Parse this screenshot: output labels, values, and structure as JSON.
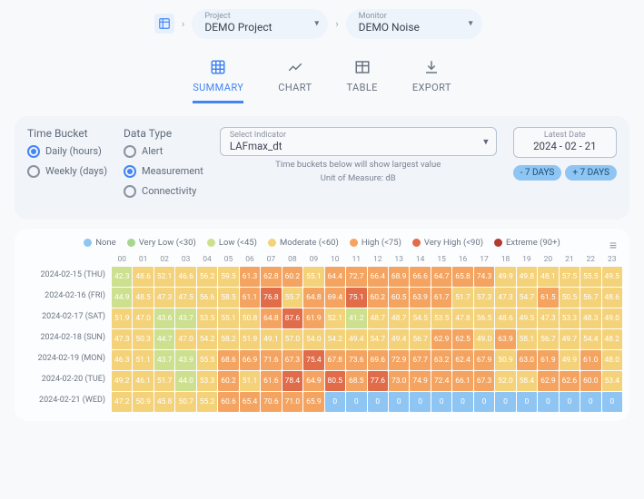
{
  "breadcrumb": {
    "project_label": "Project",
    "project_value": "DEMO Project",
    "monitor_label": "Monitor",
    "monitor_value": "DEMO Noise"
  },
  "tabs": [
    {
      "id": "summary",
      "label": "SUMMARY",
      "active": true
    },
    {
      "id": "chart",
      "label": "CHART",
      "active": false
    },
    {
      "id": "table",
      "label": "TABLE",
      "active": false
    },
    {
      "id": "export",
      "label": "EXPORT",
      "active": false
    }
  ],
  "controls": {
    "time_bucket_title": "Time Bucket",
    "time_bucket_options": [
      {
        "label": "Daily (hours)",
        "selected": true
      },
      {
        "label": "Weekly (days)",
        "selected": false
      }
    ],
    "data_type_title": "Data Type",
    "data_type_options": [
      {
        "label": "Alert",
        "selected": false
      },
      {
        "label": "Measurement",
        "selected": true
      },
      {
        "label": "Connectivity",
        "selected": false
      }
    ],
    "indicator_label": "Select Indicator",
    "indicator_value": "LAFmax_dt",
    "hint1": "Time buckets below will show largest value",
    "hint2": "Unit of Measure: dB",
    "latest_label": "Latest Date",
    "latest_value": "2024 - 02 - 21",
    "prev_btn": "- 7 DAYS",
    "next_btn": "+ 7 DAYS"
  },
  "legend": [
    {
      "label": "None",
      "color": "#8ec5f3"
    },
    {
      "label": "Very Low (<30)",
      "color": "#a7d68f"
    },
    {
      "label": "Low (<45)",
      "color": "#cce08f"
    },
    {
      "label": "Moderate (<60)",
      "color": "#f4d27a"
    },
    {
      "label": "High (<75)",
      "color": "#f4a460"
    },
    {
      "label": "Very High (<90)",
      "color": "#e06c4a"
    },
    {
      "label": "Extreme (90+)",
      "color": "#b23a2f"
    }
  ],
  "colors": {
    "none": "#8ec5f3",
    "vlow": "#a7d68f",
    "low": "#cce08f",
    "mod": "#f4d27a",
    "high": "#f4a460",
    "vhigh": "#e06c4a",
    "ext": "#b23a2f"
  },
  "hours": [
    "00",
    "01",
    "02",
    "03",
    "04",
    "05",
    "06",
    "07",
    "08",
    "09",
    "10",
    "11",
    "12",
    "13",
    "14",
    "15",
    "16",
    "17",
    "18",
    "19",
    "20",
    "21",
    "22",
    "23"
  ],
  "rows": [
    {
      "label": "2024-02-15 (THU)",
      "v": [
        42.3,
        48.6,
        52.1,
        46.6,
        56.2,
        59.5,
        61.3,
        62.8,
        60.2,
        55.1,
        64.4,
        72.7,
        66.4,
        68.9,
        66.6,
        64.7,
        65.8,
        74.3,
        49.9,
        49.8,
        48.1,
        57.5,
        55.5,
        49.5
      ]
    },
    {
      "label": "2024-02-16 (FRI)",
      "v": [
        44.9,
        48.5,
        47.3,
        47.5,
        56.6,
        58.5,
        61.1,
        76.8,
        55.7,
        64.8,
        69.4,
        75.1,
        60.2,
        60.5,
        63.9,
        61.7,
        51.7,
        57.3,
        47.3,
        54.7,
        61.5,
        50.5,
        56.7,
        48.6
      ]
    },
    {
      "label": "2024-02-17 (SAT)",
      "v": [
        51.9,
        47.0,
        43.6,
        43.7,
        53.5,
        55.1,
        50.8,
        64.8,
        87.6,
        61.9,
        52.1,
        41.2,
        48.7,
        48.7,
        54.5,
        53.5,
        47.8,
        56.5,
        48.6,
        49.5,
        47.3,
        53.3,
        48.3,
        49.0
      ]
    },
    {
      "label": "2024-02-18 (SUN)",
      "v": [
        47.3,
        50.3,
        44.7,
        47.0,
        54.2,
        58.2,
        51.9,
        49.1,
        57.0,
        54.0,
        54.2,
        49.4,
        54.7,
        49.4,
        56.7,
        62.9,
        62.5,
        49.0,
        63.9,
        58.1,
        56.7,
        49.7,
        54.4,
        48.2
      ]
    },
    {
      "label": "2024-02-19 (MON)",
      "v": [
        46.3,
        51.1,
        43.7,
        43.9,
        55.5,
        68.6,
        66.9,
        71.6,
        67.3,
        75.4,
        67.8,
        73.6,
        69.6,
        72.9,
        67.7,
        63.2,
        62.4,
        67.9,
        50.9,
        63.0,
        61.9,
        49.9,
        61.0,
        48.0
      ]
    },
    {
      "label": "2024-02-20 (TUE)",
      "v": [
        49.2,
        46.1,
        51.7,
        44.0,
        53.3,
        60.2,
        51.1,
        61.6,
        78.4,
        64.9,
        80.5,
        68.5,
        77.6,
        73.0,
        74.9,
        72.4,
        66.1,
        67.3,
        52.0,
        58.4,
        62.9,
        62.6,
        60.0,
        53.4
      ]
    },
    {
      "label": "2024-02-21 (WED)",
      "v": [
        47.2,
        50.9,
        45.8,
        50.7,
        55.2,
        60.6,
        65.4,
        70.6,
        71.0,
        65.9,
        0,
        0,
        0,
        0,
        0,
        0,
        0,
        0,
        0,
        0,
        0,
        0,
        0,
        0
      ]
    }
  ]
}
